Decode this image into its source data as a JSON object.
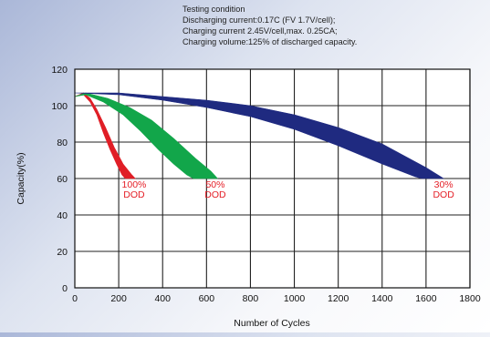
{
  "notes": {
    "title": "Testing condition",
    "line1": "Discharging current:0.17C (FV 1.7V/cell);",
    "line2": "Charging current 2.45V/cell,max. 0.25CA;",
    "line3": "Charging volume:125% of discharged capacity."
  },
  "chart_data": {
    "type": "area",
    "title": "",
    "xlabel": "Number of Cycles",
    "ylabel": "Capacity(%)",
    "xlim": [
      0,
      1800
    ],
    "ylim": [
      0,
      120
    ],
    "x_ticks": [
      "0",
      "200",
      "400",
      "600",
      "800",
      "1000",
      "1200",
      "1400",
      "1600",
      "1800"
    ],
    "y_ticks": [
      "0",
      "20",
      "40",
      "60",
      "80",
      "100",
      "120"
    ],
    "grid": true,
    "series": [
      {
        "name": "100% DOD",
        "label_pct": "100%",
        "label_dod": "DOD",
        "color": "#e01e26",
        "upper": [
          [
            0,
            105
          ],
          [
            40,
            107
          ],
          [
            70,
            104
          ],
          [
            100,
            98
          ],
          [
            140,
            88
          ],
          [
            180,
            77
          ],
          [
            220,
            68
          ],
          [
            260,
            62
          ],
          [
            275,
            60
          ]
        ],
        "lower": [
          [
            0,
            105
          ],
          [
            40,
            106
          ],
          [
            70,
            102
          ],
          [
            100,
            95
          ],
          [
            130,
            85
          ],
          [
            160,
            76
          ],
          [
            190,
            68
          ],
          [
            215,
            62
          ],
          [
            230,
            60
          ]
        ],
        "label_at": [
          270,
          55
        ]
      },
      {
        "name": "50% DOD",
        "label_pct": "50%",
        "label_dod": "DOD",
        "color": "#12a64a",
        "upper": [
          [
            0,
            105
          ],
          [
            50,
            107
          ],
          [
            150,
            104
          ],
          [
            250,
            99
          ],
          [
            350,
            92
          ],
          [
            450,
            82
          ],
          [
            550,
            71
          ],
          [
            620,
            64
          ],
          [
            650,
            60
          ]
        ],
        "lower": [
          [
            0,
            105
          ],
          [
            50,
            106
          ],
          [
            130,
            102
          ],
          [
            220,
            95
          ],
          [
            300,
            86
          ],
          [
            380,
            76
          ],
          [
            450,
            68
          ],
          [
            510,
            62
          ],
          [
            540,
            60
          ]
        ],
        "label_at": [
          640,
          55
        ]
      },
      {
        "name": "30% DOD",
        "label_pct": "30%",
        "label_dod": "DOD",
        "color": "#1f2a80",
        "upper": [
          [
            0,
            107
          ],
          [
            200,
            107
          ],
          [
            400,
            105
          ],
          [
            600,
            103
          ],
          [
            800,
            100
          ],
          [
            1000,
            95
          ],
          [
            1200,
            88
          ],
          [
            1400,
            79
          ],
          [
            1600,
            66
          ],
          [
            1680,
            60
          ]
        ],
        "lower": [
          [
            0,
            107
          ],
          [
            200,
            106
          ],
          [
            400,
            103
          ],
          [
            600,
            99
          ],
          [
            800,
            94
          ],
          [
            1000,
            87
          ],
          [
            1200,
            78
          ],
          [
            1400,
            68
          ],
          [
            1550,
            61
          ],
          [
            1580,
            60
          ]
        ],
        "label_at": [
          1680,
          55
        ]
      }
    ]
  }
}
